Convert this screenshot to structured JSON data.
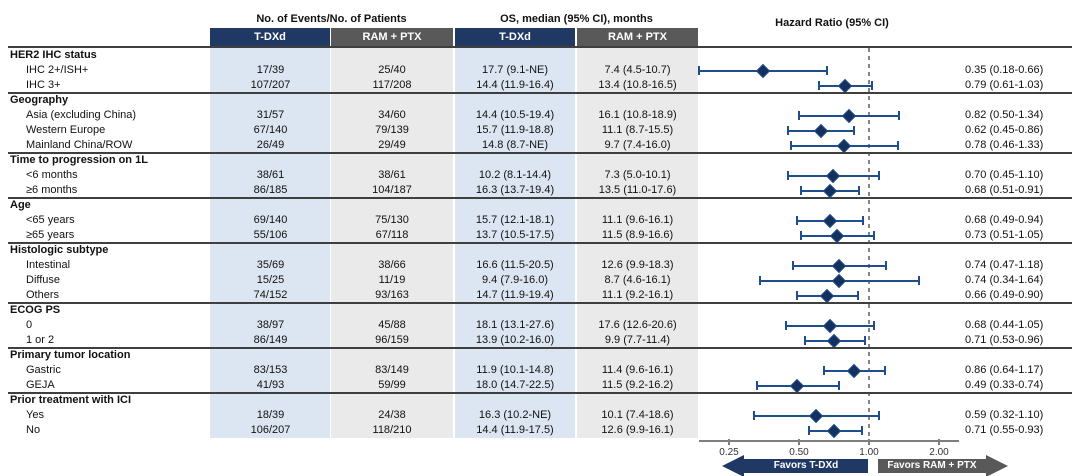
{
  "colors": {
    "header_navy": "#1f3864",
    "header_gray": "#595959",
    "band_blue": "#dce6f2",
    "band_gray": "#eaeaea",
    "ci_line": "#1f4e8f",
    "diamond": "#14315e",
    "rule_dark": "#3f3f3f",
    "axis_gray": "#7f7f7f"
  },
  "chart_data": {
    "type": "forest",
    "arms": [
      "T-DXd",
      "RAM + PTX"
    ],
    "column_headers": {
      "events": "No. of Events/No. of Patients",
      "os": "OS, median (95% CI), months",
      "hr": "Hazard Ratio (95% CI)"
    },
    "x_axis": {
      "scale": "log2",
      "ticks": [
        0.25,
        0.5,
        1.0,
        2.0
      ],
      "tick_labels": [
        "0.25",
        "0.50",
        "1.00",
        "2.00"
      ],
      "reference": 1.0,
      "xlim": [
        0.17,
        2.4
      ]
    },
    "favors": {
      "left": "Favors T-DXd",
      "right": "Favors RAM + PTX"
    },
    "groups": [
      {
        "label": "HER2 IHC status",
        "rows": [
          {
            "label": "IHC 2+/ISH+",
            "events": [
              "17/39",
              "25/40"
            ],
            "os": [
              "17.7 (9.1-NE)",
              "7.4 (4.5-10.7)"
            ],
            "hr_label": "0.35 (0.18-0.66)",
            "hr": 0.35,
            "ci": [
              0.18,
              0.66
            ]
          },
          {
            "label": "IHC 3+",
            "events": [
              "107/207",
              "117/208"
            ],
            "os": [
              "14.4 (11.9-16.4)",
              "13.4 (10.8-16.5)"
            ],
            "hr_label": "0.79 (0.61-1.03)",
            "hr": 0.79,
            "ci": [
              0.61,
              1.03
            ]
          }
        ]
      },
      {
        "label": "Geography",
        "rows": [
          {
            "label": "Asia (excluding China)",
            "events": [
              "31/57",
              "34/60"
            ],
            "os": [
              "14.4 (10.5-19.4)",
              "16.1 (10.8-18.9)"
            ],
            "hr_label": "0.82 (0.50-1.34)",
            "hr": 0.82,
            "ci": [
              0.5,
              1.34
            ]
          },
          {
            "label": "Western Europe",
            "events": [
              "67/140",
              "79/139"
            ],
            "os": [
              "15.7 (11.9-18.8)",
              "11.1 (8.7-15.5)"
            ],
            "hr_label": "0.62 (0.45-0.86)",
            "hr": 0.62,
            "ci": [
              0.45,
              0.86
            ]
          },
          {
            "label": "Mainland China/ROW",
            "events": [
              "26/49",
              "29/49"
            ],
            "os": [
              "14.8 (8.7-NE)",
              "9.7 (7.4-16.0)"
            ],
            "hr_label": "0.78 (0.46-1.33)",
            "hr": 0.78,
            "ci": [
              0.46,
              1.33
            ]
          }
        ]
      },
      {
        "label": "Time to progression on 1L",
        "rows": [
          {
            "label": "<6 months",
            "events": [
              "38/61",
              "38/61"
            ],
            "os": [
              "10.2 (8.1-14.4)",
              "7.3 (5.0-10.1)"
            ],
            "hr_label": "0.70 (0.45-1.10)",
            "hr": 0.7,
            "ci": [
              0.45,
              1.1
            ]
          },
          {
            "label": "≥6 months",
            "events": [
              "86/185",
              "104/187"
            ],
            "os": [
              "16.3 (13.7-19.4)",
              "13.5 (11.0-17.6)"
            ],
            "hr_label": "0.68 (0.51-0.91)",
            "hr": 0.68,
            "ci": [
              0.51,
              0.91
            ]
          }
        ]
      },
      {
        "label": "Age",
        "rows": [
          {
            "label": "<65 years",
            "events": [
              "69/140",
              "75/130"
            ],
            "os": [
              "15.7 (12.1-18.1)",
              "11.1 (9.6-16.1)"
            ],
            "hr_label": "0.68 (0.49-0.94)",
            "hr": 0.68,
            "ci": [
              0.49,
              0.94
            ]
          },
          {
            "label": "≥65 years",
            "events": [
              "55/106",
              "67/118"
            ],
            "os": [
              "13.7 (10.5-17.5)",
              "11.5 (8.9-16.6)"
            ],
            "hr_label": "0.73 (0.51-1.05)",
            "hr": 0.73,
            "ci": [
              0.51,
              1.05
            ]
          }
        ]
      },
      {
        "label": "Histologic subtype",
        "rows": [
          {
            "label": "Intestinal",
            "events": [
              "35/69",
              "38/66"
            ],
            "os": [
              "16.6 (11.5-20.5)",
              "12.6 (9.9-18.3)"
            ],
            "hr_label": "0.74 (0.47-1.18)",
            "hr": 0.74,
            "ci": [
              0.47,
              1.18
            ]
          },
          {
            "label": "Diffuse",
            "events": [
              "15/25",
              "11/19"
            ],
            "os": [
              "9.4 (7.9-16.0)",
              "8.7 (4.6-16.1)"
            ],
            "hr_label": "0.74 (0.34-1.64)",
            "hr": 0.74,
            "ci": [
              0.34,
              1.64
            ]
          },
          {
            "label": "Others",
            "events": [
              "74/152",
              "93/163"
            ],
            "os": [
              "14.7 (11.9-19.4)",
              "11.1 (9.2-16.1)"
            ],
            "hr_label": "0.66 (0.49-0.90)",
            "hr": 0.66,
            "ci": [
              0.49,
              0.9
            ]
          }
        ]
      },
      {
        "label": "ECOG PS",
        "rows": [
          {
            "label": "0",
            "events": [
              "38/97",
              "45/88"
            ],
            "os": [
              "18.1 (13.1-27.6)",
              "17.6 (12.6-20.6)"
            ],
            "hr_label": "0.68 (0.44-1.05)",
            "hr": 0.68,
            "ci": [
              0.44,
              1.05
            ]
          },
          {
            "label": "1 or 2",
            "events": [
              "86/149",
              "96/159"
            ],
            "os": [
              "13.9 (10.2-16.0)",
              "9.9 (7.7-11.4)"
            ],
            "hr_label": "0.71 (0.53-0.96)",
            "hr": 0.71,
            "ci": [
              0.53,
              0.96
            ]
          }
        ]
      },
      {
        "label": "Primary tumor location",
        "rows": [
          {
            "label": "Gastric",
            "events": [
              "83/153",
              "83/149"
            ],
            "os": [
              "11.9 (10.1-14.8)",
              "11.4 (9.6-16.1)"
            ],
            "hr_label": "0.86 (0.64-1.17)",
            "hr": 0.86,
            "ci": [
              0.64,
              1.17
            ]
          },
          {
            "label": "GEJA",
            "events": [
              "41/93",
              "59/99"
            ],
            "os": [
              "18.0 (14.7-22.5)",
              "11.5 (9.2-16.2)"
            ],
            "hr_label": "0.49 (0.33-0.74)",
            "hr": 0.49,
            "ci": [
              0.33,
              0.74
            ]
          }
        ]
      },
      {
        "label": "Prior treatment with ICI",
        "rows": [
          {
            "label": "Yes",
            "events": [
              "18/39",
              "24/38"
            ],
            "os": [
              "16.3 (10.2-NE)",
              "10.1 (7.4-18.6)"
            ],
            "hr_label": "0.59 (0.32-1.10)",
            "hr": 0.59,
            "ci": [
              0.32,
              1.1
            ]
          },
          {
            "label": "No",
            "events": [
              "106/207",
              "118/210"
            ],
            "os": [
              "14.4 (11.9-17.5)",
              "12.6 (9.9-16.1)"
            ],
            "hr_label": "0.71 (0.55-0.93)",
            "hr": 0.71,
            "ci": [
              0.55,
              0.93
            ]
          }
        ]
      }
    ]
  }
}
